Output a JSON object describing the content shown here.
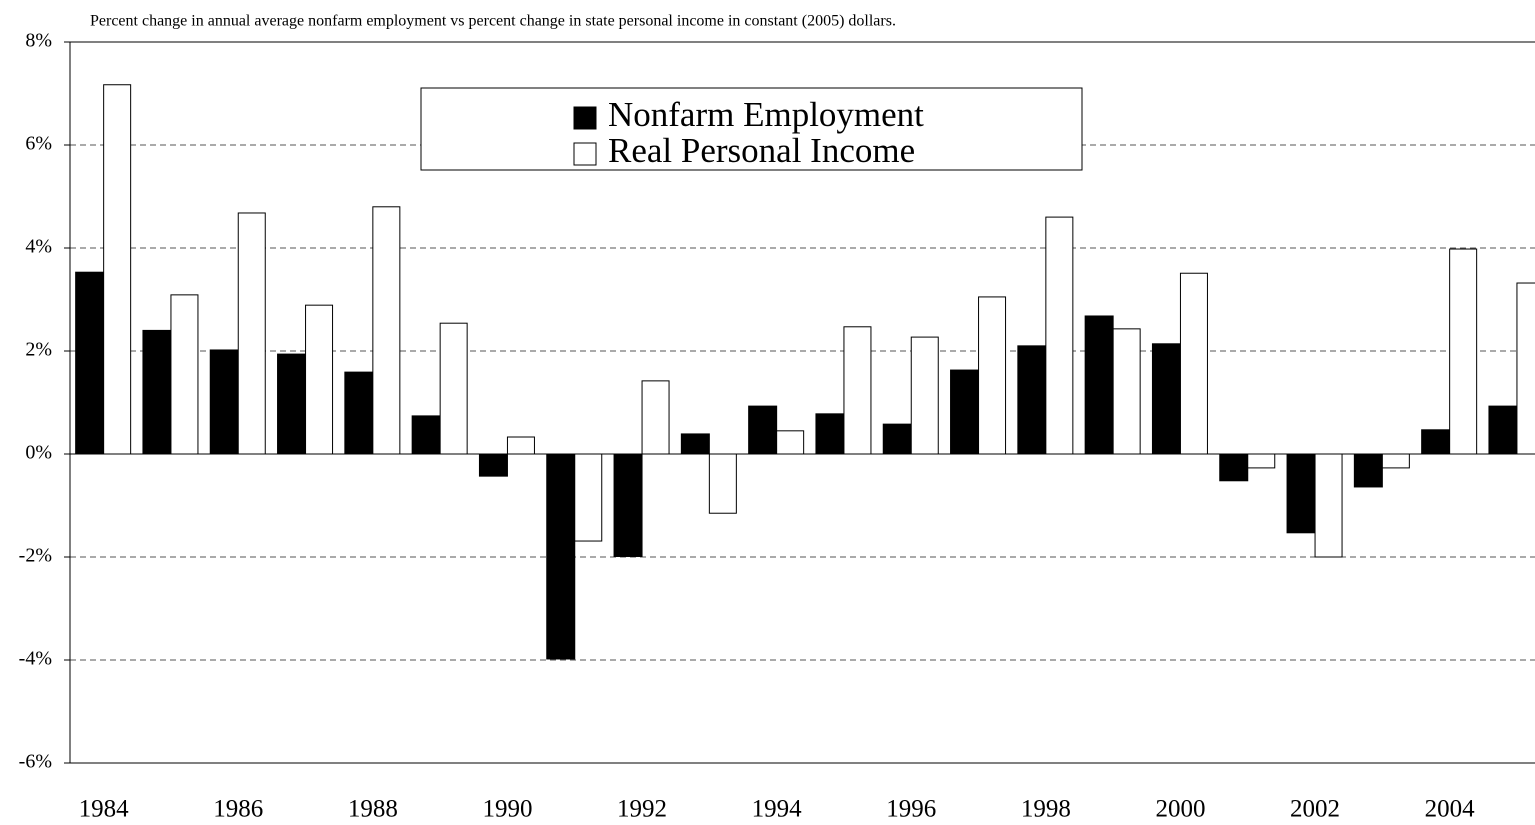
{
  "chart_data": {
    "type": "bar",
    "title": "Percent change in annual average nonfarm employment vs percent change in state personal income in constant (2005) dollars.",
    "categories": [
      "1984",
      null,
      "1986",
      null,
      "1988",
      null,
      "1990",
      null,
      "1992",
      null,
      "1994",
      null,
      "1996",
      null,
      "1998",
      null,
      "2000",
      null,
      "2002",
      null,
      "2004",
      null
    ],
    "series": [
      {
        "name": "Nonfarm Employment",
        "color": "#000000",
        "values": [
          3.53,
          2.4,
          2.02,
          1.94,
          1.59,
          0.74,
          -0.43,
          -3.98,
          -1.99,
          0.39,
          0.93,
          0.78,
          0.58,
          1.63,
          2.1,
          2.68,
          2.14,
          -0.52,
          -1.53,
          -0.64,
          0.47,
          0.93
        ]
      },
      {
        "name": "Real Personal Income",
        "color": "#ffffff",
        "values": [
          7.17,
          3.09,
          4.68,
          2.89,
          4.8,
          2.54,
          0.33,
          -1.69,
          1.42,
          -1.15,
          0.45,
          2.47,
          2.27,
          3.05,
          4.6,
          2.43,
          3.51,
          -0.27,
          -2.0,
          -0.27,
          3.98,
          3.32
        ]
      }
    ],
    "ylim": [
      -6,
      8
    ],
    "yticks": [
      {
        "value": -6,
        "label": "-6%"
      },
      {
        "value": -4,
        "label": "-4%"
      },
      {
        "value": -2,
        "label": "-2%"
      },
      {
        "value": 0,
        "label": "0%"
      },
      {
        "value": 2,
        "label": "2%"
      },
      {
        "value": 4,
        "label": "4%"
      },
      {
        "value": 6,
        "label": "6%"
      },
      {
        "value": 8,
        "label": "8%"
      }
    ],
    "grid": true
  }
}
